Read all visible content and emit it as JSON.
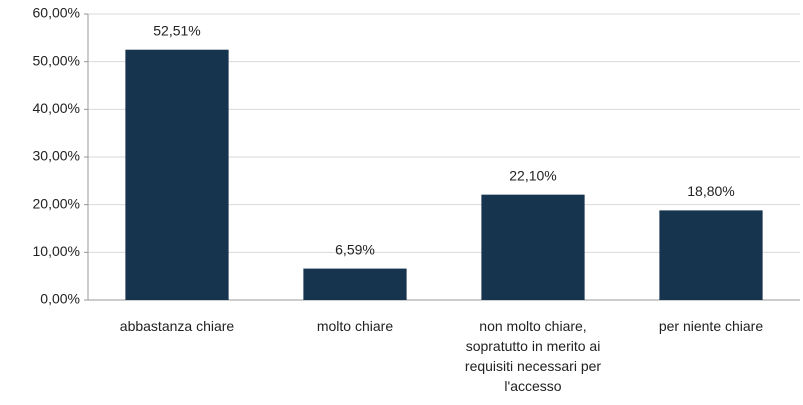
{
  "chart_data": {
    "type": "bar",
    "categories": [
      "abbastanza chiare",
      "molto chiare",
      "non molto chiare, sopratutto in merito ai requisiti necessari per l'accesso",
      "per niente chiare"
    ],
    "values": [
      52.51,
      6.59,
      22.1,
      18.8
    ],
    "value_labels": [
      "52,51%",
      "6,59%",
      "22,10%",
      "18,80%"
    ],
    "color": "#17344f",
    "ylim": [
      0,
      60
    ],
    "yticks": [
      {
        "value": 0,
        "label": "0,00%"
      },
      {
        "value": 10,
        "label": "10,00%"
      },
      {
        "value": 20,
        "label": "20,00%"
      },
      {
        "value": 30,
        "label": "30,00%"
      },
      {
        "value": 40,
        "label": "40,00%"
      },
      {
        "value": 50,
        "label": "50,00%"
      },
      {
        "value": 60,
        "label": "60,00%"
      }
    ],
    "grid": true
  }
}
